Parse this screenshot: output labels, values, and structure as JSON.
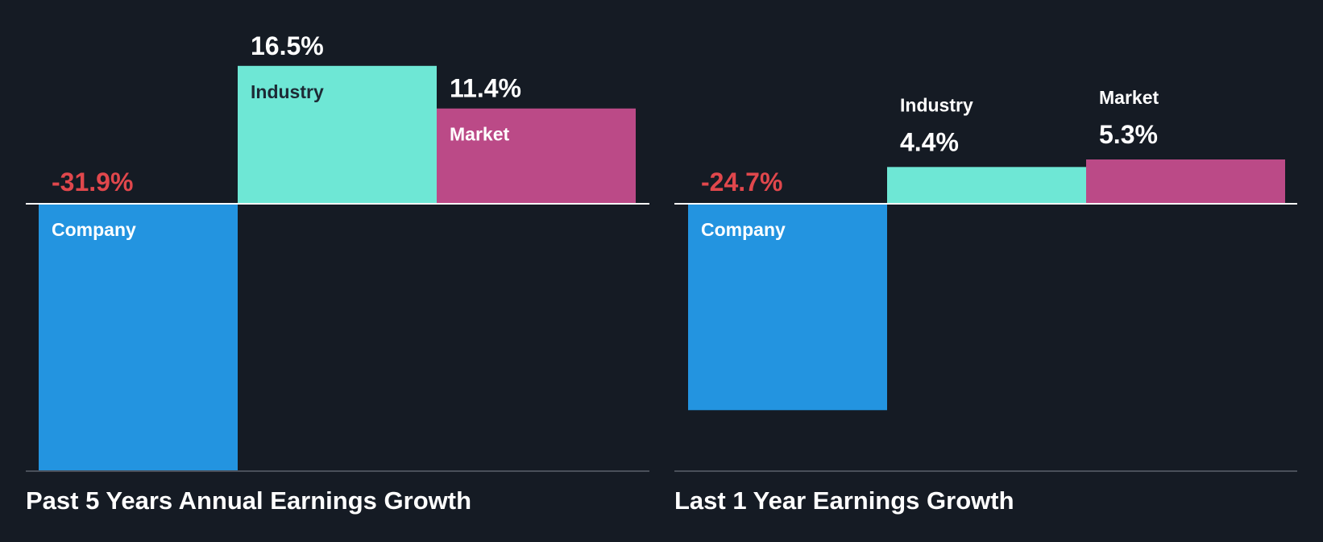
{
  "colors": {
    "background": "#151b24",
    "company": "#2394e0",
    "industry": "#6ee7d5",
    "market": "#bb4a87",
    "negative_label": "#e0474c",
    "positive_label": "#ffffff",
    "zero_line": "#ffffff",
    "baseline": "#4a505a"
  },
  "chart_data": [
    {
      "type": "bar",
      "title": "Past 5 Years Annual Earnings Growth",
      "categories": [
        "Company",
        "Industry",
        "Market"
      ],
      "values": [
        -31.9,
        16.5,
        11.4
      ],
      "value_labels": [
        "-31.9%",
        "16.5%",
        "11.4%"
      ],
      "unit": "%",
      "ylim": [
        -31.9,
        16.5
      ],
      "grid": false,
      "legend": "none"
    },
    {
      "type": "bar",
      "title": "Last 1 Year Earnings Growth",
      "categories": [
        "Company",
        "Industry",
        "Market"
      ],
      "values": [
        -24.7,
        4.4,
        5.3
      ],
      "value_labels": [
        "-24.7%",
        "4.4%",
        "5.3%"
      ],
      "unit": "%",
      "ylim": [
        -31.9,
        16.5
      ],
      "grid": false,
      "legend": "none"
    }
  ]
}
